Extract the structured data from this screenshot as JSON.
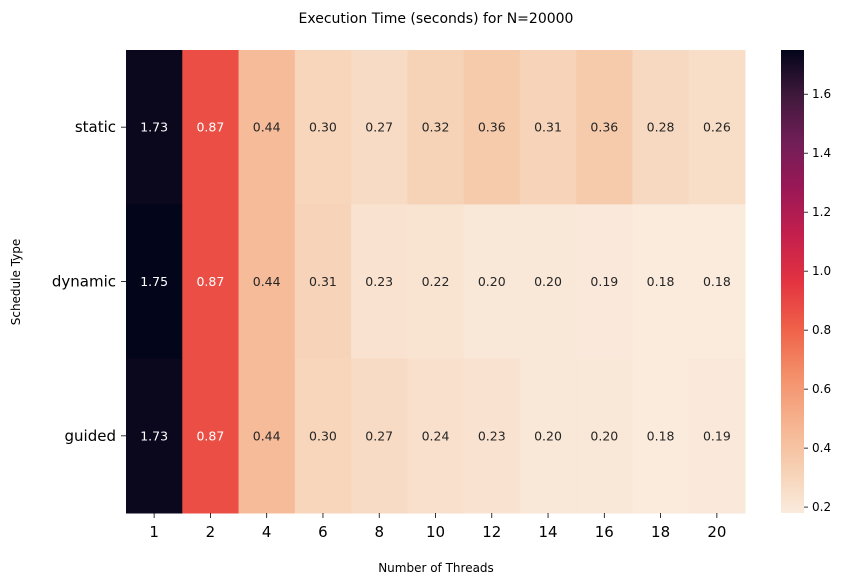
{
  "chart_data": {
    "type": "heatmap",
    "title": "Execution Time (seconds) for N=20000",
    "xlabel": "Number of Threads",
    "ylabel": "Schedule Type",
    "x": [
      "1",
      "2",
      "4",
      "6",
      "8",
      "10",
      "12",
      "14",
      "16",
      "18",
      "20"
    ],
    "y": [
      "static",
      "dynamic",
      "guided"
    ],
    "values": [
      [
        1.73,
        0.87,
        0.44,
        0.3,
        0.27,
        0.32,
        0.36,
        0.31,
        0.36,
        0.28,
        0.26
      ],
      [
        1.75,
        0.87,
        0.44,
        0.31,
        0.23,
        0.22,
        0.2,
        0.2,
        0.19,
        0.18,
        0.18
      ],
      [
        1.73,
        0.87,
        0.44,
        0.3,
        0.27,
        0.24,
        0.23,
        0.2,
        0.2,
        0.18,
        0.19
      ]
    ],
    "cell_labels": [
      [
        "1.73",
        "0.87",
        "0.44",
        "0.30",
        "0.27",
        "0.32",
        "0.36",
        "0.31",
        "0.36",
        "0.28",
        "0.26"
      ],
      [
        "1.75",
        "0.87",
        "0.44",
        "0.31",
        "0.23",
        "0.22",
        "0.20",
        "0.20",
        "0.19",
        "0.18",
        "0.18"
      ],
      [
        "1.73",
        "0.87",
        "0.44",
        "0.30",
        "0.27",
        "0.24",
        "0.23",
        "0.20",
        "0.20",
        "0.18",
        "0.19"
      ]
    ],
    "colormap": "rocket_r",
    "colorbar": {
      "range": [
        0.18,
        1.75
      ],
      "ticks": [
        "0.2",
        "0.4",
        "0.6",
        "0.8",
        "1.0",
        "1.2",
        "1.4",
        "1.6"
      ],
      "position": "right"
    },
    "grid": false
  }
}
